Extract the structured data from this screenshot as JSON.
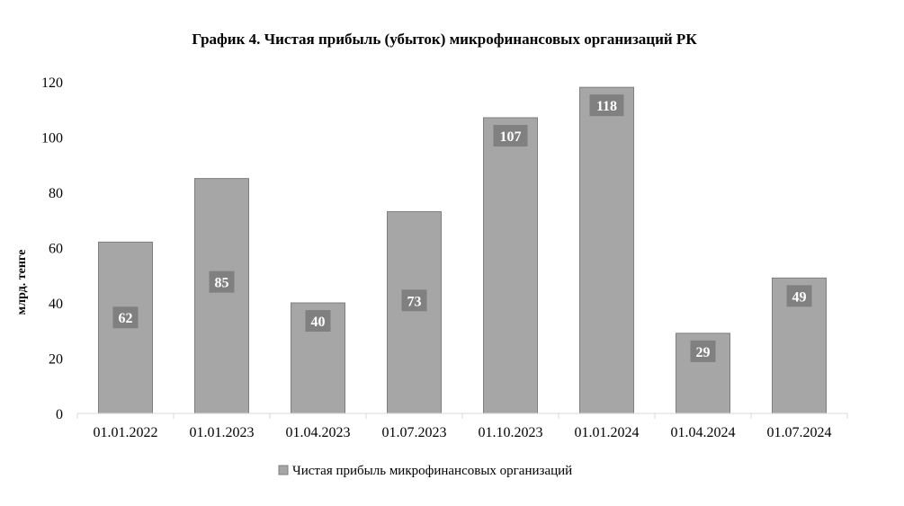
{
  "chart_data": {
    "type": "bar",
    "title": "График 4. Чистая прибыль (убыток) микрофинансовых организаций РК",
    "xlabel": "",
    "ylabel": "млрд. тенге",
    "categories": [
      "01.01.2022",
      "01.01.2023",
      "01.04.2023",
      "01.07.2023",
      "01.10.2023",
      "01.01.2024",
      "01.04.2024",
      "01.07.2024"
    ],
    "series": [
      {
        "name": "Чистая прибыль микрофинансовых организаций",
        "values": [
          62,
          85,
          40,
          73,
          107,
          118,
          29,
          49
        ]
      }
    ],
    "data_labels": [
      "62",
      "85",
      "40",
      "73",
      "107",
      "118",
      "29",
      "49"
    ],
    "ylim": [
      0,
      120
    ],
    "yticks": [
      "0",
      "20",
      "40",
      "60",
      "80",
      "100",
      "120"
    ],
    "grid": false,
    "legend_position": "bottom-center",
    "colors": {
      "bar_fill": "#a6a6a6",
      "bar_stroke": "#7f7f7f",
      "label_box": "#808080",
      "label_text": "#ffffff",
      "axis": "#d9d9d9",
      "text": "#000000"
    }
  }
}
